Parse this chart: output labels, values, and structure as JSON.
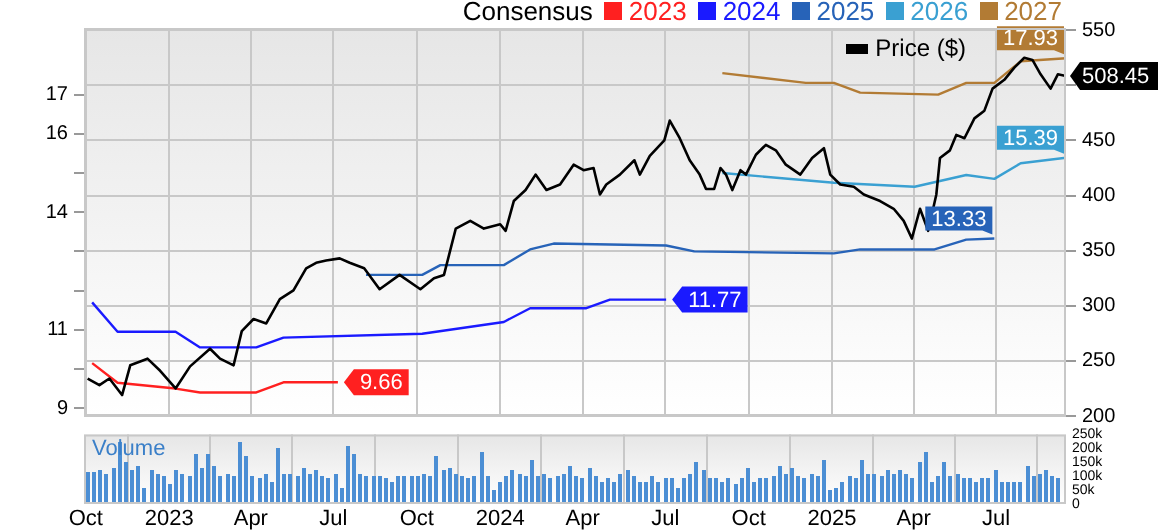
{
  "chart_data": {
    "type": "line",
    "legend_title": "Consensus",
    "legend": "top right",
    "grid": true,
    "marker": "none",
    "xlim": [
      "2022-09-29",
      "2025-09-16"
    ],
    "xticks": [
      {
        "value": "2022-10-01",
        "label": "Oct"
      },
      {
        "value": "2023-01-01",
        "label": "2023"
      },
      {
        "value": "2023-04-01",
        "label": "Apr"
      },
      {
        "value": "2023-07-01",
        "label": "Jul"
      },
      {
        "value": "2023-10-01",
        "label": "Oct"
      },
      {
        "value": "2024-01-01",
        "label": "2024"
      },
      {
        "value": "2024-04-01",
        "label": "Apr"
      },
      {
        "value": "2024-07-01",
        "label": "Jul"
      },
      {
        "value": "2024-10-01",
        "label": "Oct"
      },
      {
        "value": "2025-01-01",
        "label": "2025"
      },
      {
        "value": "2025-04-01",
        "label": "Apr"
      },
      {
        "value": "2025-07-01",
        "label": "Jul"
      }
    ],
    "ylim": [
      8.8,
      18.7
    ],
    "yticks": [
      9,
      {
        "value": 10,
        "label": null
      },
      11,
      {
        "value": 12,
        "label": null
      },
      {
        "value": 13,
        "label": null
      },
      14,
      {
        "value": 15,
        "label": null
      },
      16,
      17
    ],
    "y2lim": [
      200,
      552
    ],
    "y2ticks": [
      200,
      250,
      300,
      350,
      400,
      450,
      {
        "value": 500,
        "label": null
      },
      550
    ],
    "y3lim": [
      0,
      250000
    ],
    "y3ticks": [
      0,
      {
        "value": 50000,
        "label": "50k"
      },
      {
        "value": 100000,
        "label": "100k"
      },
      {
        "value": 150000,
        "label": "150k"
      },
      {
        "value": 200000,
        "label": "200k"
      },
      {
        "value": 250000,
        "label": "250k"
      }
    ],
    "y3label": "Volume",
    "series": [
      {
        "name": "2023",
        "color": "#ff2020",
        "x": [
          "2022-10-08",
          "2022-11-05",
          "2023-01-08",
          "2023-02-04",
          "2023-04-07",
          "2023-05-07",
          "2023-07-06"
        ],
        "values": [
          10.15,
          9.65,
          9.5,
          9.4,
          9.4,
          9.66,
          9.66
        ],
        "value_labels": [
          null,
          null,
          null,
          null,
          null,
          null,
          "9.66"
        ]
      },
      {
        "name": "2024",
        "color": "#1a1aff",
        "x": [
          "2022-10-08",
          "2022-11-05",
          "2023-01-08",
          "2023-02-04",
          "2023-04-07",
          "2023-05-07",
          "2023-10-07",
          "2024-01-05",
          "2024-02-03",
          "2024-04-05",
          "2024-05-01",
          "2024-07-02"
        ],
        "values": [
          11.7,
          10.95,
          10.95,
          10.55,
          10.55,
          10.8,
          10.9,
          11.2,
          11.55,
          11.55,
          11.77,
          11.77
        ],
        "value_labels": [
          null,
          null,
          null,
          null,
          null,
          null,
          null,
          null,
          null,
          null,
          null,
          "11.77"
        ]
      },
      {
        "name": "2025",
        "color": "#2763b8",
        "x": [
          "2023-08-06",
          "2023-10-07",
          "2023-10-27",
          "2024-01-05",
          "2024-02-03",
          "2024-02-29",
          "2024-07-02",
          "2024-08-02",
          "2025-01-03",
          "2025-02-01",
          "2025-04-24",
          "2025-05-29",
          "2025-06-29"
        ],
        "values": [
          12.4,
          12.4,
          12.65,
          12.65,
          13.05,
          13.2,
          13.15,
          13.0,
          12.95,
          13.05,
          13.05,
          13.3,
          13.33
        ],
        "value_labels": [
          null,
          null,
          null,
          null,
          null,
          null,
          null,
          null,
          null,
          null,
          null,
          null,
          "13.33"
        ]
      },
      {
        "name": "2026",
        "color": "#3aa0d2",
        "x": [
          "2024-09-02",
          "2025-01-03",
          "2025-04-02",
          "2025-05-29",
          "2025-06-29",
          "2025-07-28",
          "2025-09-16"
        ],
        "values": [
          15.0,
          14.75,
          14.65,
          14.95,
          14.85,
          15.25,
          15.39
        ],
        "value_labels": [
          null,
          null,
          null,
          null,
          null,
          null,
          "15.39"
        ]
      },
      {
        "name": "2027",
        "color": "#b27b34",
        "x": [
          "2024-09-02",
          "2024-12-03",
          "2025-01-03",
          "2025-02-01",
          "2025-04-28",
          "2025-05-29",
          "2025-06-29",
          "2025-07-28",
          "2025-09-16"
        ],
        "values": [
          17.55,
          17.3,
          17.3,
          17.05,
          17.0,
          17.3,
          17.3,
          17.85,
          17.93
        ],
        "value_labels": [
          null,
          null,
          null,
          null,
          null,
          null,
          null,
          null,
          "17.93"
        ]
      },
      {
        "name": "Price ($)",
        "color": "#000000",
        "axis": "y2",
        "x": [
          "2022-10-03",
          "2022-10-16",
          "2022-10-27",
          "2022-11-10",
          "2022-11-19",
          "2022-12-08",
          "2022-12-22",
          "2023-01-08",
          "2023-01-24",
          "2023-02-15",
          "2023-02-26",
          "2023-03-13",
          "2023-03-22",
          "2023-04-04",
          "2023-04-18",
          "2023-05-03",
          "2023-05-18",
          "2023-06-01",
          "2023-06-12",
          "2023-06-23",
          "2023-07-08",
          "2023-07-19",
          "2023-08-04",
          "2023-08-21",
          "2023-09-12",
          "2023-10-05",
          "2023-10-20",
          "2023-10-31",
          "2023-11-13",
          "2023-11-29",
          "2023-12-14",
          "2024-01-01",
          "2024-01-07",
          "2024-01-16",
          "2024-01-29",
          "2024-02-09",
          "2024-02-21",
          "2024-03-07",
          "2024-03-22",
          "2024-04-02",
          "2024-04-13",
          "2024-04-20",
          "2024-04-27",
          "2024-05-12",
          "2024-05-28",
          "2024-06-03",
          "2024-06-14",
          "2024-06-30",
          "2024-07-06",
          "2024-07-17",
          "2024-07-28",
          "2024-08-08",
          "2024-08-15",
          "2024-08-24",
          "2024-08-31",
          "2024-09-06",
          "2024-09-13",
          "2024-09-22",
          "2024-09-28",
          "2024-10-09",
          "2024-10-20",
          "2024-10-31",
          "2024-11-11",
          "2024-11-27",
          "2024-12-10",
          "2024-12-23",
          "2024-12-30",
          "2025-01-10",
          "2025-01-25",
          "2025-02-05",
          "2025-02-23",
          "2025-03-10",
          "2025-03-21",
          "2025-03-30",
          "2025-04-08",
          "2025-04-17",
          "2025-04-26",
          "2025-04-30",
          "2025-05-11",
          "2025-05-18",
          "2025-05-27",
          "2025-06-07",
          "2025-06-18",
          "2025-06-27",
          "2025-07-10",
          "2025-07-21",
          "2025-08-01",
          "2025-08-10",
          "2025-08-19",
          "2025-08-30",
          "2025-09-07",
          "2025-09-16"
        ],
        "values": [
          234,
          228,
          234,
          219,
          246,
          252,
          241,
          225,
          245,
          261,
          252,
          246,
          277,
          288,
          284,
          306,
          314,
          334,
          339,
          341,
          343,
          339,
          334,
          315,
          328,
          315,
          325,
          328,
          370,
          377,
          370,
          374,
          368,
          395,
          405,
          419,
          405,
          410,
          428,
          423,
          425,
          401,
          410,
          419,
          432,
          419,
          436,
          450,
          468,
          452,
          432,
          419,
          406,
          406,
          425,
          419,
          405,
          423,
          419,
          437,
          446,
          441,
          428,
          419,
          434,
          443,
          419,
          410,
          408,
          401,
          395,
          388,
          377,
          361,
          388,
          368,
          401,
          434,
          441,
          455,
          452,
          470,
          477,
          497,
          505,
          516,
          525,
          523,
          510,
          497,
          510,
          508.45
        ],
        "value_labels": [
          null,
          null,
          null,
          null,
          null,
          null,
          null,
          null,
          null,
          null,
          null,
          null,
          null,
          null,
          null,
          null,
          null,
          null,
          null,
          null,
          null,
          null,
          null,
          null,
          null,
          null,
          null,
          null,
          null,
          null,
          null,
          null,
          null,
          null,
          null,
          null,
          null,
          null,
          null,
          null,
          null,
          null,
          null,
          null,
          null,
          null,
          null,
          null,
          null,
          null,
          null,
          null,
          null,
          null,
          null,
          null,
          null,
          null,
          null,
          null,
          null,
          null,
          null,
          null,
          null,
          null,
          null,
          null,
          null,
          null,
          null,
          null,
          null,
          null,
          null,
          null,
          null,
          null,
          null,
          null,
          null,
          null,
          null,
          null,
          null,
          null,
          null,
          null,
          null,
          null,
          null,
          "508.45"
        ]
      },
      {
        "type": "bar",
        "color": "#4b8ed4",
        "axis": "y3",
        "x": [
          "2022-10-03",
          "2022-10-10",
          "2022-10-17",
          "2022-10-24",
          "2022-10-31",
          "2022-11-07",
          "2022-11-14",
          "2022-11-21",
          "2022-11-28",
          "2022-12-05",
          "2022-12-12",
          "2022-12-19",
          "2022-12-26",
          "2023-01-02",
          "2023-01-09",
          "2023-01-16",
          "2023-01-23",
          "2023-01-30",
          "2023-02-06",
          "2023-02-13",
          "2023-02-20",
          "2023-02-27",
          "2023-03-06",
          "2023-03-13",
          "2023-03-20",
          "2023-03-27",
          "2023-04-03",
          "2023-04-10",
          "2023-04-17",
          "2023-04-24",
          "2023-05-01",
          "2023-05-08",
          "2023-05-15",
          "2023-05-22",
          "2023-05-29",
          "2023-06-05",
          "2023-06-12",
          "2023-06-19",
          "2023-06-26",
          "2023-07-03",
          "2023-07-10",
          "2023-07-17",
          "2023-07-24",
          "2023-07-31",
          "2023-08-07",
          "2023-08-14",
          "2023-08-21",
          "2023-08-28",
          "2023-09-04",
          "2023-09-11",
          "2023-09-18",
          "2023-09-25",
          "2023-10-02",
          "2023-10-09",
          "2023-10-16",
          "2023-10-23",
          "2023-10-30",
          "2023-11-06",
          "2023-11-13",
          "2023-11-20",
          "2023-11-27",
          "2023-12-04",
          "2023-12-11",
          "2023-12-18",
          "2023-12-25",
          "2024-01-01",
          "2024-01-08",
          "2024-01-15",
          "2024-01-22",
          "2024-01-29",
          "2024-02-05",
          "2024-02-12",
          "2024-02-19",
          "2024-02-26",
          "2024-03-04",
          "2024-03-11",
          "2024-03-18",
          "2024-03-25",
          "2024-04-01",
          "2024-04-08",
          "2024-04-15",
          "2024-04-22",
          "2024-04-29",
          "2024-05-06",
          "2024-05-13",
          "2024-05-20",
          "2024-05-27",
          "2024-06-03",
          "2024-06-10",
          "2024-06-17",
          "2024-06-24",
          "2024-07-01",
          "2024-07-08",
          "2024-07-15",
          "2024-07-22",
          "2024-07-29",
          "2024-08-05",
          "2024-08-12",
          "2024-08-19",
          "2024-08-26",
          "2024-09-02",
          "2024-09-09",
          "2024-09-16",
          "2024-09-23",
          "2024-09-30",
          "2024-10-07",
          "2024-10-14",
          "2024-10-21",
          "2024-10-28",
          "2024-11-04",
          "2024-11-11",
          "2024-11-18",
          "2024-11-25",
          "2024-12-02",
          "2024-12-09",
          "2024-12-16",
          "2024-12-23",
          "2024-12-30",
          "2025-01-06",
          "2025-01-13",
          "2025-01-20",
          "2025-01-27",
          "2025-02-03",
          "2025-02-10",
          "2025-02-17",
          "2025-02-24",
          "2025-03-03",
          "2025-03-10",
          "2025-03-17",
          "2025-03-24",
          "2025-03-31",
          "2025-04-07",
          "2025-04-14",
          "2025-04-21",
          "2025-04-28",
          "2025-05-05",
          "2025-05-12",
          "2025-05-19",
          "2025-05-26",
          "2025-06-02",
          "2025-06-09",
          "2025-06-16",
          "2025-06-23",
          "2025-06-30",
          "2025-07-07",
          "2025-07-14",
          "2025-07-21",
          "2025-07-28",
          "2025-08-04",
          "2025-08-11",
          "2025-08-18",
          "2025-08-25",
          "2025-09-01",
          "2025-09-08"
        ],
        "values": [
          118000,
          112000,
          120000,
          110000,
          130000,
          220000,
          150000,
          125000,
          140000,
          60000,
          120000,
          110000,
          100000,
          70000,
          120000,
          110000,
          100000,
          180000,
          130000,
          180000,
          140000,
          100000,
          110000,
          100000,
          220000,
          170000,
          100000,
          90000,
          110000,
          80000,
          200000,
          110000,
          110000,
          100000,
          130000,
          110000,
          120000,
          100000,
          90000,
          110000,
          60000,
          210000,
          180000,
          110000,
          100000,
          100000,
          100000,
          90000,
          80000,
          100000,
          100000,
          100000,
          100000,
          110000,
          100000,
          170000,
          120000,
          130000,
          110000,
          100000,
          90000,
          100000,
          190000,
          100000,
          50000,
          80000,
          100000,
          120000,
          110000,
          100000,
          160000,
          100000,
          110000,
          90000,
          100000,
          110000,
          140000,
          100000,
          90000,
          130000,
          100000,
          80000,
          90000,
          80000,
          110000,
          120000,
          100000,
          80000,
          80000,
          100000,
          80000,
          90000,
          90000,
          60000,
          90000,
          110000,
          150000,
          120000,
          90000,
          90000,
          80000,
          90000,
          70000,
          90000,
          130000,
          80000,
          90000,
          90000,
          100000,
          140000,
          110000,
          130000,
          100000,
          90000,
          110000,
          100000,
          160000,
          50000,
          60000,
          80000,
          100000,
          90000,
          160000,
          110000,
          110000,
          100000,
          120000,
          110000,
          120000,
          110000,
          90000,
          150000,
          190000,
          80000,
          100000,
          150000,
          100000,
          110000,
          90000,
          90000,
          80000,
          90000,
          90000,
          120000,
          80000,
          80000,
          80000,
          80000,
          140000,
          100000,
          110000,
          120000,
          100000,
          90000
        ]
      }
    ]
  }
}
